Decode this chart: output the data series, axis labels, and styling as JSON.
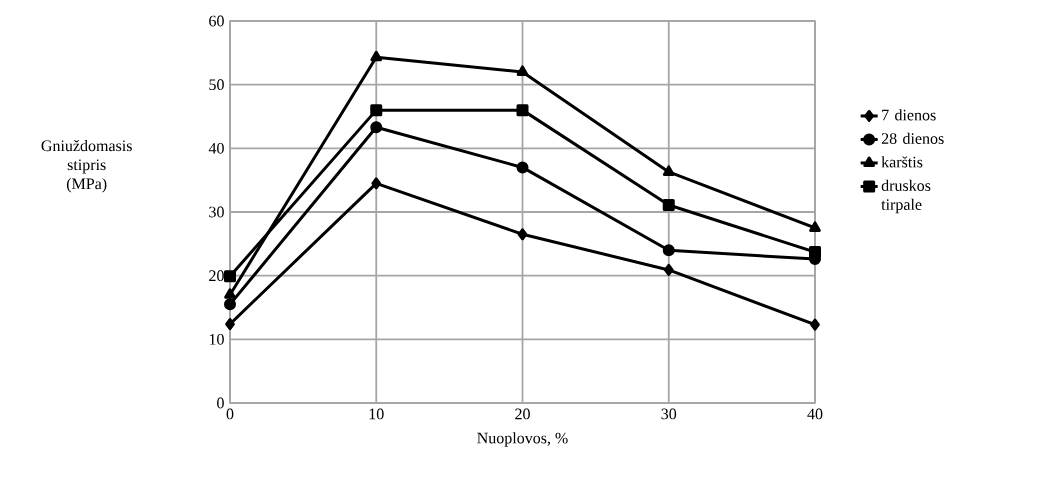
{
  "chart_data": {
    "type": "line",
    "xlabel": "Nuoplovos, %",
    "ylabel": "Gniuždomasis stipris (MPa)",
    "x": [
      0,
      10,
      20,
      30,
      40
    ],
    "series": [
      {
        "name": "7 dienos",
        "color": "#000000",
        "marker": "diamond",
        "values": [
          12.4,
          34.5,
          26.5,
          20.9,
          12.3
        ]
      },
      {
        "name": "28 dienos",
        "color": "#000000",
        "marker": "circle",
        "values": [
          15.5,
          43.3,
          37,
          24,
          22.6
        ]
      },
      {
        "name": "karštis",
        "color": "#000000",
        "marker": "triangle",
        "values": [
          17,
          54.3,
          52,
          36.3,
          27.5
        ]
      },
      {
        "name": "druskos tirpale",
        "color": "#000000",
        "marker": "square",
        "values": [
          19.9,
          46,
          46,
          31.1,
          23.7
        ]
      }
    ],
    "xlim": [
      0,
      40
    ],
    "ylim": [
      0,
      60
    ],
    "xticks": [
      0,
      10,
      20,
      30,
      40
    ],
    "yticks": [
      0,
      10,
      20,
      30,
      40,
      50,
      60
    ],
    "grid": true,
    "legend": "right",
    "line_style": "solid"
  }
}
